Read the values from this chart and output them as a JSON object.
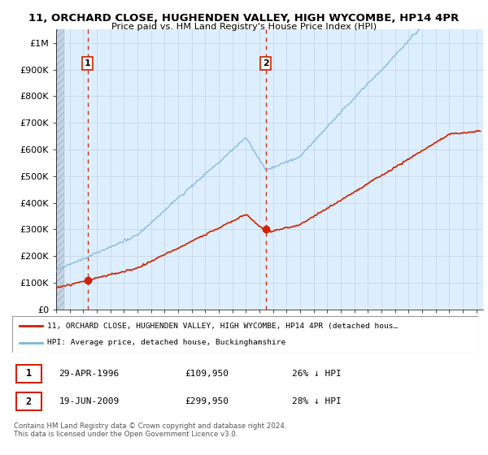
{
  "title_line1": "11, ORCHARD CLOSE, HUGHENDEN VALLEY, HIGH WYCOMBE, HP14 4PR",
  "title_line2": "Price paid vs. HM Land Registry's House Price Index (HPI)",
  "ylim": [
    0,
    1050000
  ],
  "yticks": [
    0,
    100000,
    200000,
    300000,
    400000,
    500000,
    600000,
    700000,
    800000,
    900000,
    1000000
  ],
  "ytick_labels": [
    "£0",
    "£100K",
    "£200K",
    "£300K",
    "£400K",
    "£500K",
    "£600K",
    "£700K",
    "£800K",
    "£900K",
    "£1M"
  ],
  "hpi_color": "#7ab8d9",
  "price_color": "#cc2200",
  "marker_color": "#cc2200",
  "dashed_line_color": "#cc2200",
  "sale1_x": 1996.33,
  "sale1_y": 109950,
  "sale1_label": "1",
  "sale2_x": 2009.47,
  "sale2_y": 299950,
  "sale2_label": "2",
  "grid_color": "#c8d8e8",
  "bg_color": "#ffffff",
  "plot_bg_color": "#ddeeff",
  "hatch_facecolor": "#c5d5e5",
  "legend_line1": "11, ORCHARD CLOSE, HUGHENDEN VALLEY, HIGH WYCOMBE, HP14 4PR (detached hous…",
  "legend_line2": "HPI: Average price, detached house, Buckinghamshire",
  "table_row1_num": "1",
  "table_row1_date": "29-APR-1996",
  "table_row1_price": "£109,950",
  "table_row1_hpi": "26% ↓ HPI",
  "table_row2_num": "2",
  "table_row2_date": "19-JUN-2009",
  "table_row2_price": "£299,950",
  "table_row2_hpi": "28% ↓ HPI",
  "footnote": "Contains HM Land Registry data © Crown copyright and database right 2024.\nThis data is licensed under the Open Government Licence v3.0.",
  "xmin": 1994,
  "xmax": 2025.5
}
